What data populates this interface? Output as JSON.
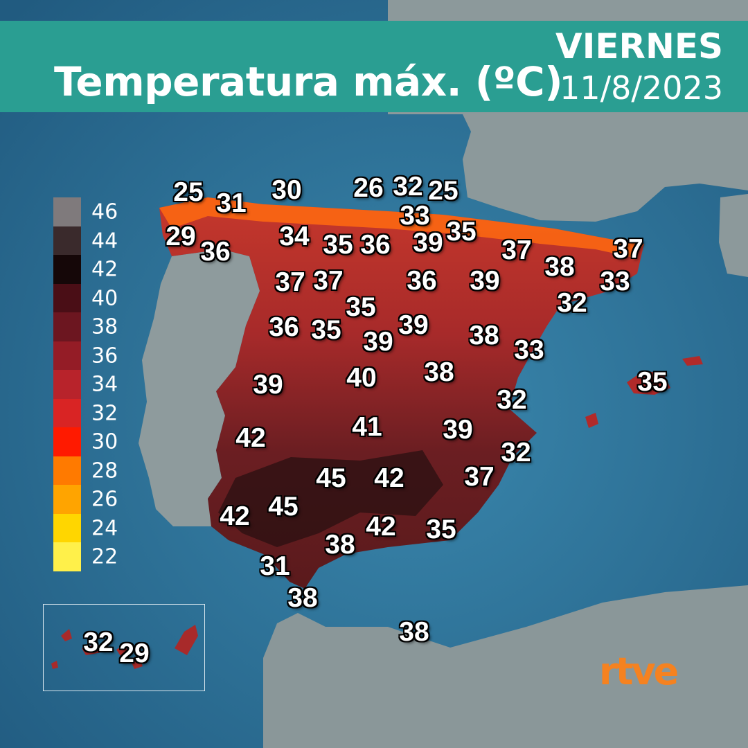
{
  "header": {
    "title": "Temperatura máx. (ºC)",
    "day": "VIERNES",
    "date": "11/8/2023"
  },
  "legend": [
    {
      "label": "46",
      "color": "#7f7a7c"
    },
    {
      "label": "44",
      "color": "#3a2a2c"
    },
    {
      "label": "42",
      "color": "#150708"
    },
    {
      "label": "40",
      "color": "#4a0e16"
    },
    {
      "label": "38",
      "color": "#6c1620"
    },
    {
      "label": "36",
      "color": "#941c26"
    },
    {
      "label": "34",
      "color": "#b8232b"
    },
    {
      "label": "32",
      "color": "#d92424"
    },
    {
      "label": "30",
      "color": "#ff1a00"
    },
    {
      "label": "28",
      "color": "#ff7a00"
    },
    {
      "label": "26",
      "color": "#ffa400"
    },
    {
      "label": "24",
      "color": "#ffd600"
    },
    {
      "label": "22",
      "color": "#fff04a"
    }
  ],
  "temperatures": [
    {
      "label": "25"
    },
    {
      "label": "31"
    },
    {
      "label": "30"
    },
    {
      "label": "26"
    },
    {
      "label": "32"
    },
    {
      "label": "25"
    },
    {
      "label": "33"
    },
    {
      "label": "29"
    },
    {
      "label": "36"
    },
    {
      "label": "34"
    },
    {
      "label": "35"
    },
    {
      "label": "36"
    },
    {
      "label": "39"
    },
    {
      "label": "35"
    },
    {
      "label": "37"
    },
    {
      "label": "37"
    },
    {
      "label": "37"
    },
    {
      "label": "37"
    },
    {
      "label": "36"
    },
    {
      "label": "39"
    },
    {
      "label": "38"
    },
    {
      "label": "33"
    },
    {
      "label": "35"
    },
    {
      "label": "32"
    },
    {
      "label": "36"
    },
    {
      "label": "35"
    },
    {
      "label": "39"
    },
    {
      "label": "39"
    },
    {
      "label": "38"
    },
    {
      "label": "33"
    },
    {
      "label": "39"
    },
    {
      "label": "40"
    },
    {
      "label": "38"
    },
    {
      "label": "35"
    },
    {
      "label": "32"
    },
    {
      "label": "42"
    },
    {
      "label": "41"
    },
    {
      "label": "39"
    },
    {
      "label": "32"
    },
    {
      "label": "45"
    },
    {
      "label": "42"
    },
    {
      "label": "37"
    },
    {
      "label": "42"
    },
    {
      "label": "45"
    },
    {
      "label": "42"
    },
    {
      "label": "35"
    },
    {
      "label": "38"
    },
    {
      "label": "31"
    },
    {
      "label": "38"
    },
    {
      "label": "38"
    },
    {
      "label": "32"
    },
    {
      "label": "29"
    }
  ],
  "colors": {
    "sea": "#2d6e96",
    "land": "#8e9b9d",
    "header": "#2a9e92",
    "logo": "#f58220"
  },
  "logo": "rtve"
}
